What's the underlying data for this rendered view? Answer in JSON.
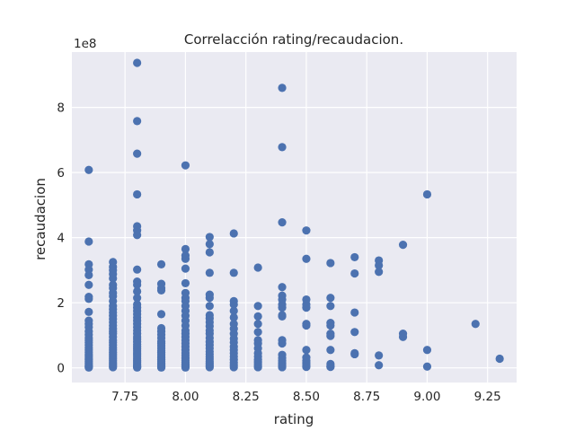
{
  "chart_data": {
    "type": "scatter",
    "title": "Correlacción rating/recaudacion.",
    "xlabel": "rating",
    "ylabel": "recaudacion",
    "y_scale_label": "1e8",
    "xlim": [
      7.53,
      9.37
    ],
    "ylim": [
      -0.45,
      9.7
    ],
    "x_ticks": [
      7.75,
      8.0,
      8.25,
      8.5,
      8.75,
      9.0,
      9.25
    ],
    "x_tick_labels": [
      "7.75",
      "8.00",
      "8.25",
      "8.50",
      "8.75",
      "9.00",
      "9.25"
    ],
    "y_ticks": [
      0,
      2,
      4,
      6,
      8
    ],
    "y_tick_labels": [
      "0",
      "2",
      "4",
      "6",
      "8"
    ],
    "grid": true,
    "background_color": "#eaeaf2",
    "grid_color": "#ffffff",
    "marker_color": "#4c72b0",
    "series": [
      {
        "x": [
          7.6,
          7.6,
          7.6,
          7.6,
          7.6,
          7.6,
          7.6,
          7.6,
          7.6,
          7.6,
          7.6,
          7.6,
          7.6,
          7.6,
          7.6,
          7.6,
          7.6,
          7.6,
          7.6,
          7.6,
          7.6,
          7.6,
          7.6,
          7.6,
          7.6,
          7.6,
          7.6,
          7.6,
          7.6,
          7.6,
          7.6,
          7.7,
          7.7,
          7.7,
          7.7,
          7.7,
          7.7,
          7.7,
          7.7,
          7.7,
          7.7,
          7.7,
          7.7,
          7.7,
          7.7,
          7.7,
          7.7,
          7.7,
          7.7,
          7.7,
          7.7,
          7.7,
          7.7,
          7.7,
          7.7,
          7.7,
          7.7,
          7.7,
          7.7,
          7.7,
          7.7,
          7.7,
          7.7,
          7.7,
          7.7,
          7.7,
          7.8,
          7.8,
          7.8,
          7.8,
          7.8,
          7.8,
          7.8,
          7.8,
          7.8,
          7.8,
          7.8,
          7.8,
          7.8,
          7.8,
          7.8,
          7.8,
          7.8,
          7.8,
          7.8,
          7.8,
          7.8,
          7.8,
          7.8,
          7.8,
          7.8,
          7.8,
          7.8,
          7.8,
          7.8,
          7.8,
          7.8,
          7.8,
          7.8,
          7.8,
          7.8,
          7.8,
          7.8,
          7.8,
          7.8,
          7.8,
          7.9,
          7.9,
          7.9,
          7.9,
          7.9,
          7.9,
          7.9,
          7.9,
          7.9,
          7.9,
          7.9,
          7.9,
          7.9,
          7.9,
          7.9,
          7.9,
          7.9,
          7.9,
          7.9,
          7.9,
          7.9,
          7.9,
          7.9,
          7.9,
          7.9,
          7.9,
          7.9,
          8.0,
          8.0,
          8.0,
          8.0,
          8.0,
          8.0,
          8.0,
          8.0,
          8.0,
          8.0,
          8.0,
          8.0,
          8.0,
          8.0,
          8.0,
          8.0,
          8.0,
          8.0,
          8.0,
          8.0,
          8.0,
          8.0,
          8.0,
          8.0,
          8.0,
          8.0,
          8.0,
          8.0,
          8.0,
          8.0,
          8.1,
          8.1,
          8.1,
          8.1,
          8.1,
          8.1,
          8.1,
          8.1,
          8.1,
          8.1,
          8.1,
          8.1,
          8.1,
          8.1,
          8.1,
          8.1,
          8.1,
          8.1,
          8.1,
          8.1,
          8.1,
          8.1,
          8.1,
          8.1,
          8.1,
          8.1,
          8.2,
          8.2,
          8.2,
          8.2,
          8.2,
          8.2,
          8.2,
          8.2,
          8.2,
          8.2,
          8.2,
          8.2,
          8.2,
          8.2,
          8.2,
          8.2,
          8.2,
          8.2,
          8.2,
          8.3,
          8.3,
          8.3,
          8.3,
          8.3,
          8.3,
          8.3,
          8.3,
          8.3,
          8.3,
          8.3,
          8.3,
          8.3,
          8.3,
          8.3,
          8.4,
          8.4,
          8.4,
          8.4,
          8.4,
          8.4,
          8.4,
          8.4,
          8.4,
          8.4,
          8.4,
          8.4,
          8.4,
          8.4,
          8.4,
          8.4,
          8.4,
          8.4,
          8.4,
          8.5,
          8.5,
          8.5,
          8.5,
          8.5,
          8.5,
          8.5,
          8.5,
          8.5,
          8.5,
          8.5,
          8.5,
          8.5,
          8.6,
          8.6,
          8.6,
          8.6,
          8.6,
          8.6,
          8.6,
          8.6,
          8.6,
          8.6,
          8.6,
          8.7,
          8.7,
          8.7,
          8.7,
          8.7,
          8.7,
          8.8,
          8.8,
          8.8,
          8.8,
          8.8,
          8.9,
          8.9,
          8.9,
          9.0,
          9.0,
          9.0,
          9.2,
          9.3
        ],
        "y": [
          6.08,
          3.88,
          3.18,
          3.02,
          2.85,
          2.55,
          2.18,
          2.12,
          1.72,
          1.45,
          1.35,
          1.25,
          1.12,
          1.02,
          0.92,
          0.85,
          0.78,
          0.7,
          0.62,
          0.55,
          0.48,
          0.42,
          0.36,
          0.3,
          0.25,
          0.2,
          0.15,
          0.1,
          0.06,
          0.03,
          0.01,
          3.25,
          3.1,
          3.0,
          2.88,
          2.75,
          2.55,
          2.45,
          2.3,
          2.2,
          2.05,
          1.9,
          1.8,
          1.7,
          1.6,
          1.5,
          1.4,
          1.3,
          1.2,
          1.12,
          1.05,
          0.95,
          0.85,
          0.78,
          0.7,
          0.62,
          0.55,
          0.47,
          0.4,
          0.34,
          0.28,
          0.22,
          0.16,
          0.11,
          0.06,
          0.02,
          9.37,
          7.58,
          6.58,
          5.33,
          4.35,
          4.22,
          4.08,
          3.02,
          2.65,
          2.55,
          2.35,
          2.15,
          1.95,
          1.85,
          1.75,
          1.65,
          1.55,
          1.45,
          1.35,
          1.25,
          1.15,
          1.05,
          0.95,
          0.88,
          0.8,
          0.72,
          0.65,
          0.58,
          0.52,
          0.46,
          0.4,
          0.34,
          0.28,
          0.23,
          0.18,
          0.13,
          0.09,
          0.05,
          0.03,
          0.01,
          3.18,
          2.58,
          2.45,
          2.38,
          1.65,
          1.22,
          1.12,
          1.02,
          0.92,
          0.82,
          0.75,
          0.68,
          0.6,
          0.53,
          0.47,
          0.41,
          0.35,
          0.3,
          0.25,
          0.2,
          0.15,
          0.12,
          0.09,
          0.06,
          0.04,
          0.02,
          0.01,
          6.22,
          3.65,
          3.45,
          3.35,
          3.05,
          2.6,
          2.3,
          2.15,
          2.05,
          1.9,
          1.75,
          1.6,
          1.45,
          1.3,
          1.15,
          1.05,
          0.95,
          0.85,
          0.75,
          0.65,
          0.55,
          0.46,
          0.38,
          0.3,
          0.23,
          0.17,
          0.12,
          0.08,
          0.04,
          0.01,
          4.02,
          3.8,
          3.55,
          2.92,
          2.25,
          2.15,
          1.9,
          1.62,
          1.52,
          1.4,
          1.28,
          1.15,
          1.05,
          0.92,
          0.8,
          0.7,
          0.6,
          0.5,
          0.42,
          0.34,
          0.27,
          0.2,
          0.14,
          0.09,
          0.05,
          0.02,
          4.13,
          2.92,
          2.05,
          1.95,
          1.75,
          1.55,
          1.35,
          1.2,
          1.05,
          0.9,
          0.78,
          0.65,
          0.55,
          0.45,
          0.35,
          0.25,
          0.16,
          0.08,
          0.02,
          3.08,
          1.9,
          1.58,
          1.35,
          1.1,
          0.85,
          0.75,
          0.6,
          0.45,
          0.35,
          0.25,
          0.18,
          0.12,
          0.06,
          0.02,
          8.6,
          6.78,
          4.47,
          2.48,
          2.22,
          2.1,
          1.95,
          1.85,
          1.62,
          1.58,
          0.85,
          0.75,
          0.4,
          0.3,
          0.22,
          0.15,
          0.1,
          0.05,
          0.02,
          4.22,
          3.35,
          2.1,
          1.95,
          1.85,
          1.35,
          1.3,
          0.55,
          0.32,
          0.22,
          0.15,
          0.08,
          0.03,
          3.22,
          2.15,
          1.9,
          1.38,
          1.3,
          1.05,
          0.98,
          0.55,
          0.12,
          0.06,
          0.03,
          3.4,
          2.9,
          1.7,
          1.1,
          0.45,
          0.42,
          3.3,
          3.15,
          2.95,
          0.38,
          0.08,
          3.78,
          1.05,
          0.95,
          5.33,
          0.55,
          0.04,
          1.35,
          0.28
        ]
      }
    ]
  }
}
